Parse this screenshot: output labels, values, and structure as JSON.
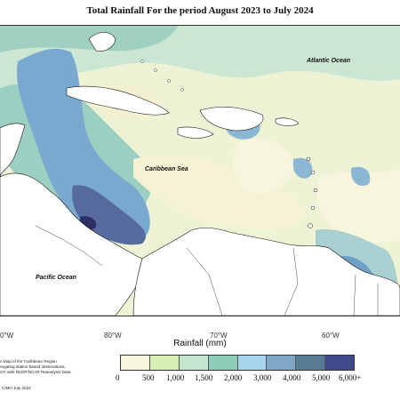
{
  "title": "Total Rainfall For the period August 2023 to July 2024",
  "map": {
    "labels": {
      "atlantic": "Atlantic Ocean",
      "caribbean": "Caribbean Sea",
      "pacific": "Pacific Ocean"
    },
    "longitudes": [
      "0°W",
      "80°W",
      "70°W",
      "60°W"
    ]
  },
  "legend": {
    "title": "Rainfall (mm)",
    "colors": [
      "#f7f5dc",
      "#d6f0b3",
      "#c5e6cf",
      "#8fcbb9",
      "#a9d4f0",
      "#7fa6c4",
      "#567d92",
      "#3f4a8a"
    ],
    "ticks": [
      "0",
      "500",
      "1,000",
      "1,500",
      "2,000",
      "3,000",
      "4,000",
      "5,000",
      "6,000+"
    ]
  },
  "credit": {
    "lines": [
      "n Map of the Caribbean Region",
      "regating station based observations,",
      "CF, with NCEP/NCAR Reanalysis Data."
    ],
    "date": "CIMH July 2024"
  }
}
